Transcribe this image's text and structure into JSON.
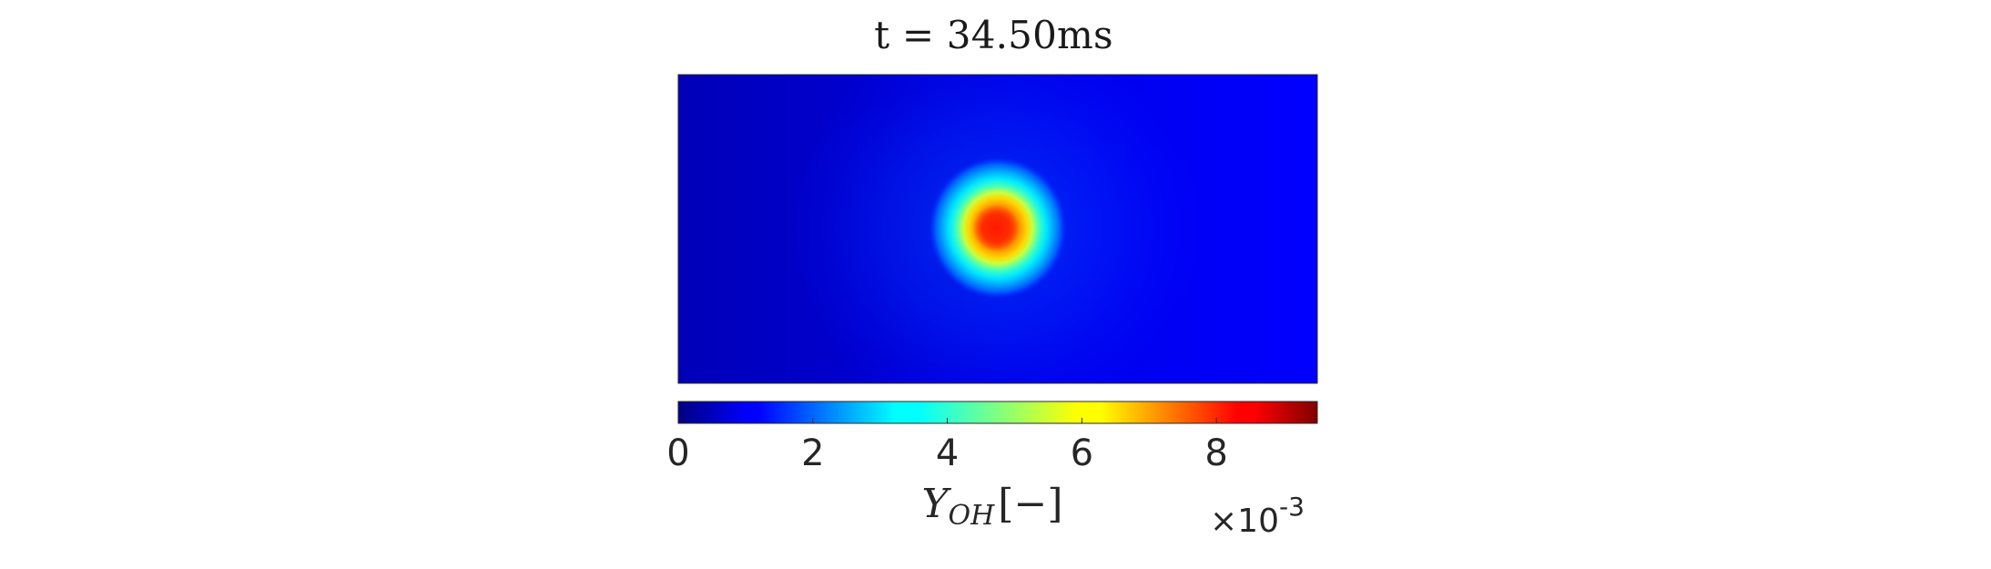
{
  "chart_data": {
    "type": "heatmap",
    "title": "t = 34.50ms",
    "colormap": "jet",
    "colorbar": {
      "orientation": "horizontal",
      "label_main": "Y",
      "label_sub": "OH",
      "label_units": "[−]",
      "ticks": [
        0,
        2,
        4,
        6,
        8
      ],
      "tick_labels": [
        "0",
        "2",
        "4",
        "6",
        "8"
      ],
      "range": [
        0,
        9.5
      ],
      "scale_prefix": "×10",
      "scale_exponent": "-3"
    },
    "field": {
      "background_value": 1.3,
      "peak_value": 8.3,
      "peak_location": "center, slightly left of middle",
      "feature": "circular OH kernel"
    }
  }
}
